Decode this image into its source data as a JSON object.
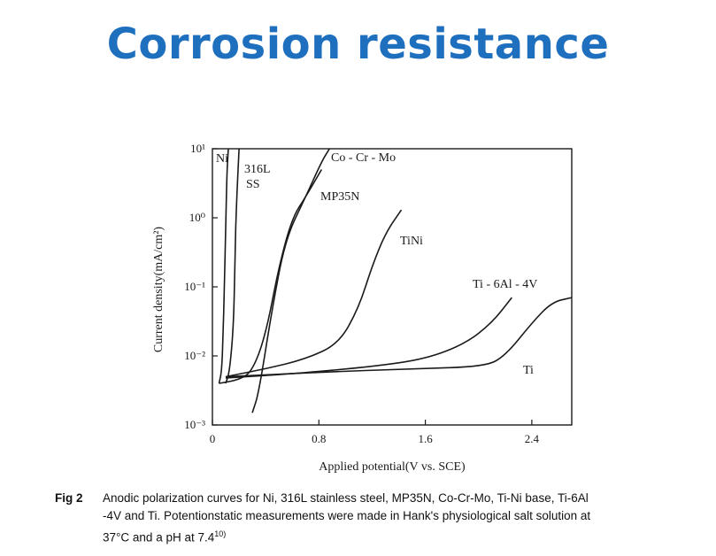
{
  "slide": {
    "title": "Corrosion resistance"
  },
  "chart_data": {
    "type": "line",
    "title": "",
    "xlabel": "Applied potential(V vs. SCE)",
    "ylabel": "Current density(mA/cm²)",
    "xlim": [
      0,
      2.7
    ],
    "ylim": [
      0.001,
      10
    ],
    "yscale": "log",
    "xticks": [
      0,
      0.8,
      1.6,
      2.4
    ],
    "xtick_labels": [
      "0",
      "0.8",
      "1.6",
      "2.4"
    ],
    "yticks": [
      10,
      1,
      0.1,
      0.01,
      0.001
    ],
    "ytick_labels": [
      "10¹",
      "10⁰",
      "10⁻¹",
      "10⁻²",
      "10⁻³"
    ],
    "grid": false,
    "series": [
      {
        "name": "Ni",
        "points": [
          [
            0.05,
            0.004
          ],
          [
            0.07,
            0.006
          ],
          [
            0.08,
            0.02
          ],
          [
            0.09,
            0.1
          ],
          [
            0.1,
            0.8
          ],
          [
            0.11,
            5
          ],
          [
            0.12,
            10
          ]
        ]
      },
      {
        "name": "316L SS",
        "points": [
          [
            0.1,
            0.004
          ],
          [
            0.13,
            0.006
          ],
          [
            0.16,
            0.03
          ],
          [
            0.17,
            0.3
          ],
          [
            0.18,
            1.5
          ],
          [
            0.2,
            10
          ]
        ]
      },
      {
        "name": "Co - Cr - Mo",
        "points": [
          [
            0.3,
            0.0015
          ],
          [
            0.35,
            0.003
          ],
          [
            0.45,
            0.05
          ],
          [
            0.55,
            0.5
          ],
          [
            0.7,
            2
          ],
          [
            0.82,
            6.5
          ],
          [
            0.88,
            10
          ]
        ]
      },
      {
        "name": "MP35N",
        "points": [
          [
            0.05,
            0.004
          ],
          [
            0.2,
            0.0045
          ],
          [
            0.3,
            0.006
          ],
          [
            0.4,
            0.02
          ],
          [
            0.5,
            0.2
          ],
          [
            0.6,
            1
          ],
          [
            0.7,
            2
          ],
          [
            0.82,
            5
          ]
        ]
      },
      {
        "name": "TiNi",
        "points": [
          [
            0.1,
            0.005
          ],
          [
            0.4,
            0.0065
          ],
          [
            0.7,
            0.009
          ],
          [
            0.95,
            0.015
          ],
          [
            1.1,
            0.05
          ],
          [
            1.2,
            0.2
          ],
          [
            1.3,
            0.6
          ],
          [
            1.42,
            1.3
          ]
        ]
      },
      {
        "name": "Ti - 6Al - 4V",
        "points": [
          [
            0.1,
            0.0048
          ],
          [
            0.6,
            0.0055
          ],
          [
            1.2,
            0.007
          ],
          [
            1.6,
            0.009
          ],
          [
            1.9,
            0.015
          ],
          [
            2.1,
            0.03
          ],
          [
            2.25,
            0.07
          ]
        ]
      },
      {
        "name": "Ti",
        "points": [
          [
            0.1,
            0.005
          ],
          [
            0.8,
            0.0058
          ],
          [
            1.5,
            0.0065
          ],
          [
            2.05,
            0.007
          ],
          [
            2.2,
            0.01
          ],
          [
            2.4,
            0.03
          ],
          [
            2.55,
            0.06
          ],
          [
            2.7,
            0.07
          ]
        ]
      }
    ],
    "colors": {
      "title": "#1f6fbf",
      "ink": "#1a1a1a"
    }
  },
  "caption": {
    "label": "Fig 2",
    "line1": "Anodic polarization curves for Ni, 316L stainless steel, MP35N, Co-Cr-Mo, Ti-Ni base, Ti-6Al",
    "line2": "-4V and Ti.  Potentionstatic measurements were made in Hank's physiological salt solution at",
    "line3": "37°C  and a pH at 7.4",
    "ref": "10)"
  }
}
